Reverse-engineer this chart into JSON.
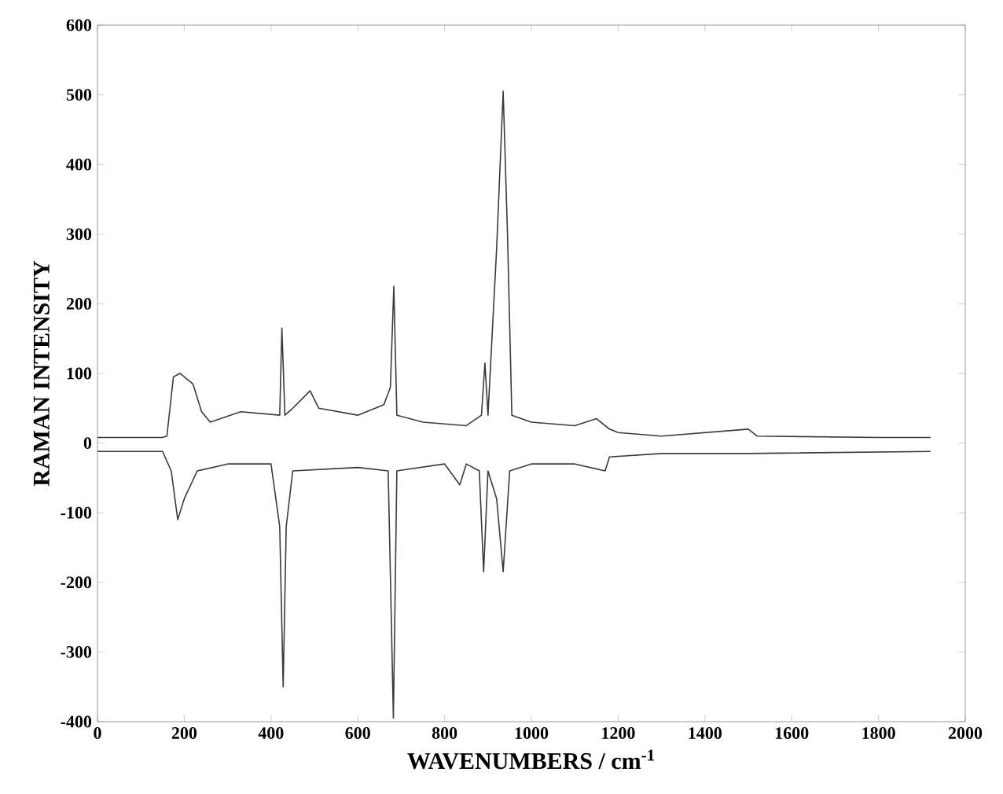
{
  "chart_data": {
    "type": "line",
    "xlabel": "WAVENUMBERS / cm$^{-1}$",
    "ylabel": "RAMAN INTENSITY",
    "xlim": [
      0,
      2000
    ],
    "ylim": [
      -400,
      600
    ],
    "xticks": [
      0,
      200,
      400,
      600,
      800,
      1000,
      1200,
      1400,
      1600,
      1800,
      2000
    ],
    "yticks": [
      -400,
      -300,
      -200,
      -100,
      0,
      100,
      200,
      300,
      400,
      500,
      600
    ],
    "grid": false,
    "marker": "none",
    "line_style": "solid",
    "series": [
      {
        "color": "#3a3a3a",
        "x": [
          0,
          150,
          160,
          175,
          190,
          220,
          240,
          260,
          330,
          420,
          425,
          432,
          450,
          490,
          510,
          600,
          660,
          675,
          683,
          690,
          750,
          850,
          885,
          893,
          900,
          920,
          935,
          945,
          955,
          1000,
          1100,
          1150,
          1180,
          1200,
          1300,
          1500,
          1520,
          1800,
          1920
        ],
        "values": [
          8,
          8,
          10,
          95,
          100,
          85,
          45,
          30,
          45,
          40,
          165,
          40,
          50,
          75,
          50,
          40,
          55,
          80,
          225,
          40,
          30,
          25,
          40,
          115,
          40,
          280,
          505,
          300,
          40,
          30,
          25,
          35,
          20,
          15,
          10,
          20,
          10,
          8,
          8
        ]
      },
      {
        "color": "#3a3a3a",
        "x": [
          0,
          150,
          170,
          185,
          200,
          230,
          300,
          400,
          420,
          428,
          435,
          450,
          600,
          670,
          682,
          690,
          800,
          835,
          850,
          880,
          890,
          900,
          920,
          935,
          950,
          1000,
          1100,
          1170,
          1180,
          1300,
          1500,
          1920
        ],
        "values": [
          -12,
          -12,
          -40,
          -110,
          -80,
          -40,
          -30,
          -30,
          -120,
          -350,
          -120,
          -40,
          -35,
          -40,
          -395,
          -40,
          -30,
          -60,
          -30,
          -40,
          -185,
          -40,
          -80,
          -185,
          -40,
          -30,
          -30,
          -40,
          -20,
          -15,
          -15,
          -12
        ]
      }
    ]
  }
}
